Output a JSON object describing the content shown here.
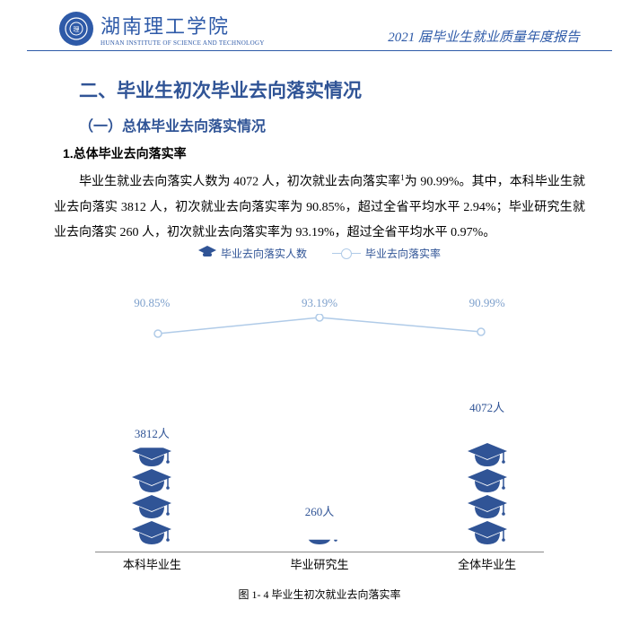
{
  "header": {
    "univ_cn": "湖南理工学院",
    "univ_en": "HUNAN INSTITUTE OF SCIENCE AND TECHNOLOGY",
    "report_title": "2021 届毕业生就业质量年度报告"
  },
  "headings": {
    "h2": "二、毕业生初次毕业去向落实情况",
    "h3": "（一）总体毕业去向落实情况",
    "h4": "1.总体毕业去向落实率"
  },
  "paragraph": {
    "seg1": "毕业生就业去向落实人数为 4072 人，初次就业去向落实率",
    "sup": "1",
    "seg2": "为 90.99%。其中，本科毕业生就业去向落实 3812 人，初次就业去向落实率为 90.85%，超过全省平均水平 2.94%；毕业研究生就业去向落实 260 人，初次就业去向落实率为 93.19%，超过全省平均水平 0.97%。"
  },
  "chart": {
    "type": "combo-bar-line",
    "legend_bar": "毕业去向落实人数",
    "legend_line": "毕业去向落实率",
    "categories": [
      "本科毕业生",
      "毕业研究生",
      "全体毕业生"
    ],
    "counts": [
      3812,
      260,
      4072
    ],
    "count_labels": [
      "3812人",
      "260人",
      "4072人"
    ],
    "rates": [
      90.85,
      93.19,
      90.99
    ],
    "rate_labels": [
      "90.85%",
      "93.19%",
      "90.99%"
    ],
    "cap_color": "#305496",
    "line_color": "#b0cbe8",
    "text_color": "#305496",
    "background_color": "#ffffff",
    "icon_units_per_cap": 1000,
    "caption": "图 1- 4  毕业生初次就业去向落实率"
  }
}
